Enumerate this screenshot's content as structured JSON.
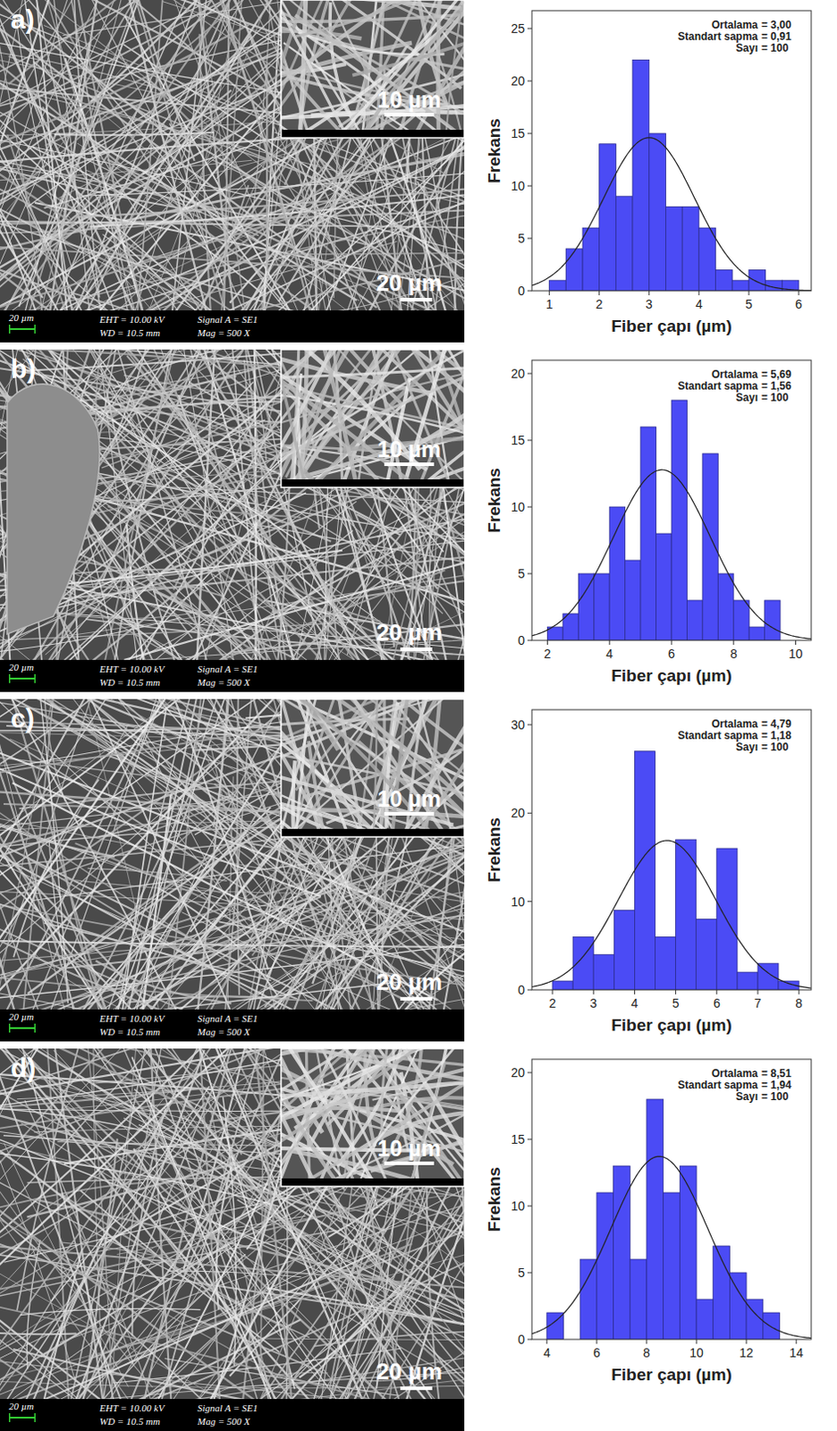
{
  "chart_data": [
    {
      "type": "histogram",
      "x_label": "Fiber çapı  (µm)",
      "y_label": "Frekans",
      "color": "#4b4bf5",
      "bins": [
        1,
        1.333,
        1.667,
        2,
        2.333,
        2.667,
        3,
        3.333,
        3.667,
        4,
        4.333,
        4.667,
        5,
        5.333,
        5.667,
        6
      ],
      "values": [
        1,
        4,
        6,
        14,
        9,
        22,
        15,
        8,
        8,
        6,
        2,
        1,
        2,
        1,
        1
      ],
      "xlim": [
        0.65,
        6.25
      ],
      "xticks": [
        1,
        2,
        3,
        4,
        5,
        6
      ],
      "ylim": [
        0,
        26.7
      ],
      "yticks": [
        0,
        5,
        10,
        15,
        20,
        25
      ],
      "stats": [
        {
          "name": "Ortalama",
          "value": 3.0,
          "label": "= 3,00"
        },
        {
          "name": "Standart sapma",
          "value": 0.91,
          "label": "= 0,91"
        },
        {
          "name": "Sayı",
          "value": 100,
          "label": "= 100"
        }
      ]
    },
    {
      "type": "histogram",
      "x_label": "Fiber çapı  (µm)",
      "y_label": "Frekans",
      "color": "#4b4bf5",
      "bins": [
        2,
        2.5,
        3,
        3.5,
        4,
        4.5,
        5,
        5.5,
        6,
        6.5,
        7,
        7.5,
        8,
        8.5,
        9,
        9.5
      ],
      "values": [
        1,
        2,
        5,
        5,
        10,
        6,
        16,
        8,
        18,
        3,
        14,
        5,
        3,
        1,
        3
      ],
      "xlim": [
        1.5,
        10.5
      ],
      "xticks": [
        2,
        4,
        6,
        8,
        10
      ],
      "ylim": [
        0,
        21
      ],
      "yticks": [
        0,
        5,
        10,
        15,
        20
      ],
      "stats": [
        {
          "name": "Ortalama",
          "value": 5.69,
          "label": "= 5,69"
        },
        {
          "name": "Standart sapma",
          "value": 1.56,
          "label": "= 1,56"
        },
        {
          "name": "Sayı",
          "value": 100,
          "label": "= 100"
        }
      ]
    },
    {
      "type": "histogram",
      "x_label": "Fiber çapı  (µm)",
      "y_label": "Frekans",
      "color": "#4b4bf5",
      "bins": [
        2,
        2.5,
        3,
        3.5,
        4,
        4.5,
        5,
        5.5,
        6,
        6.5,
        7,
        7.5,
        8
      ],
      "values": [
        1,
        6,
        4,
        9,
        27,
        6,
        17,
        8,
        16,
        2,
        3,
        1
      ],
      "xlim": [
        1.5,
        8.3
      ],
      "xticks": [
        2,
        3,
        4,
        5,
        6,
        7,
        8
      ],
      "ylim": [
        0,
        31.7
      ],
      "yticks": [
        0,
        10,
        20,
        30
      ],
      "stats": [
        {
          "name": "Ortalama",
          "value": 4.79,
          "label": "= 4,79"
        },
        {
          "name": "Standart sapma",
          "value": 1.18,
          "label": "= 1,18"
        },
        {
          "name": "Sayı",
          "value": 100,
          "label": "= 100"
        }
      ]
    },
    {
      "type": "histogram",
      "x_label": "Fiber çapı  (µm)",
      "y_label": "Frekans",
      "color": "#4b4bf5",
      "bins": [
        4,
        4.667,
        5.333,
        6,
        6.667,
        7.333,
        8,
        8.667,
        9.333,
        10,
        10.667,
        11.333,
        12,
        12.667,
        13.333
      ],
      "values": [
        2,
        0,
        6,
        11,
        13,
        6,
        18,
        11,
        13,
        3,
        7,
        5,
        3,
        2
      ],
      "xlim": [
        3.4,
        14.6
      ],
      "xticks": [
        4,
        6,
        8,
        10,
        12,
        14
      ],
      "ylim": [
        0,
        21
      ],
      "yticks": [
        0,
        5,
        10,
        15,
        20
      ],
      "stats": [
        {
          "name": "Ortalama",
          "value": 8.51,
          "label": "= 8,51"
        },
        {
          "name": "Standart sapma",
          "value": 1.94,
          "label": "= 1,94"
        },
        {
          "name": "Sayı",
          "value": 100,
          "label": "= 100"
        }
      ]
    }
  ],
  "sem_images": [
    {
      "label": "a)",
      "inset_scale": "10 µm",
      "scale": "20 µm",
      "info": {
        "scale": "20 µm",
        "eht": "EHT = 10.00 kV",
        "signal": "Signal A = SE1",
        "wd": "WD = 10.5 mm",
        "mag": "Mag =   500 X"
      }
    },
    {
      "label": "b)",
      "inset_scale": "10 µm",
      "scale": "20 µm",
      "info": {
        "scale": "20 µm",
        "eht": "EHT = 10.00 kV",
        "signal": "Signal A = SE1",
        "wd": "WD = 10.5 mm",
        "mag": "Mag =   500 X"
      }
    },
    {
      "label": "c)",
      "inset_scale": "10 µm",
      "scale": "20 µm",
      "info": {
        "scale": "20 µm",
        "eht": "EHT = 10.00 kV",
        "signal": "Signal A = SE1",
        "wd": "WD = 10.5 mm",
        "mag": "Mag =   500 X"
      }
    },
    {
      "label": "d)",
      "inset_scale": "10 µm",
      "scale": "20 µm",
      "info": {
        "scale": "20 µm",
        "eht": "EHT = 10.00 kV",
        "signal": "Signal A = SE1",
        "wd": "WD = 10.5 mm",
        "mag": "Mag =   500 X"
      }
    }
  ]
}
